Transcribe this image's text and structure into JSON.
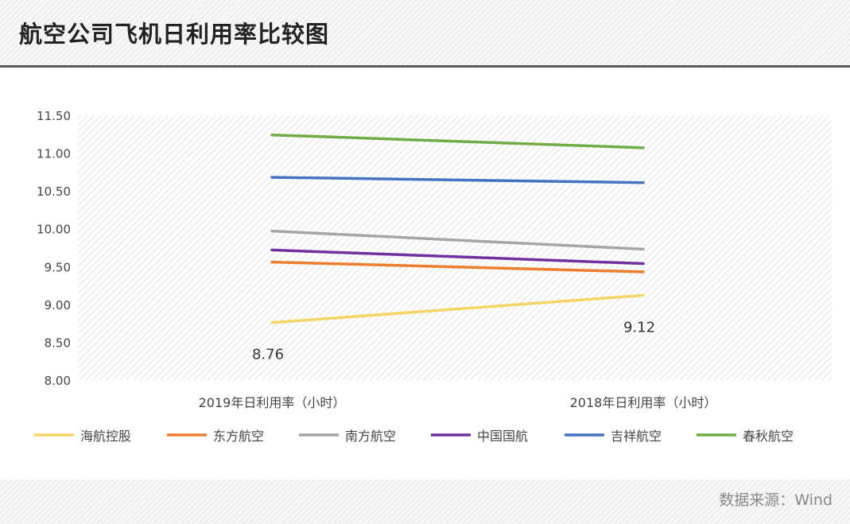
{
  "title": "航空公司飞机日利用率比较图",
  "source": "数据来源：Wind",
  "chart_data": {
    "type": "line",
    "categories": [
      "2019年日利用率（小时）",
      "2018年日利用率（小时）"
    ],
    "ylim": [
      8.0,
      11.5
    ],
    "yticks": [
      "8.00",
      "8.50",
      "9.00",
      "9.50",
      "10.00",
      "10.50",
      "11.00",
      "11.50"
    ],
    "grid": false,
    "legend_position": "bottom",
    "series": [
      {
        "name": "海航控股",
        "values": [
          8.76,
          9.12
        ],
        "color": "#f5d665",
        "labels": [
          "8.76",
          "9.12"
        ]
      },
      {
        "name": "东方航空",
        "values": [
          9.56,
          9.43
        ],
        "color": "#ed7d31"
      },
      {
        "name": "南方航空",
        "values": [
          9.97,
          9.73
        ],
        "color": "#a5a5a5"
      },
      {
        "name": "中国国航",
        "values": [
          9.72,
          9.54
        ],
        "color": "#7030a0"
      },
      {
        "name": "吉祥航空",
        "values": [
          10.68,
          10.61
        ],
        "color": "#4472c4"
      },
      {
        "name": "春秋航空",
        "values": [
          11.24,
          11.07
        ],
        "color": "#70ad47"
      }
    ]
  }
}
